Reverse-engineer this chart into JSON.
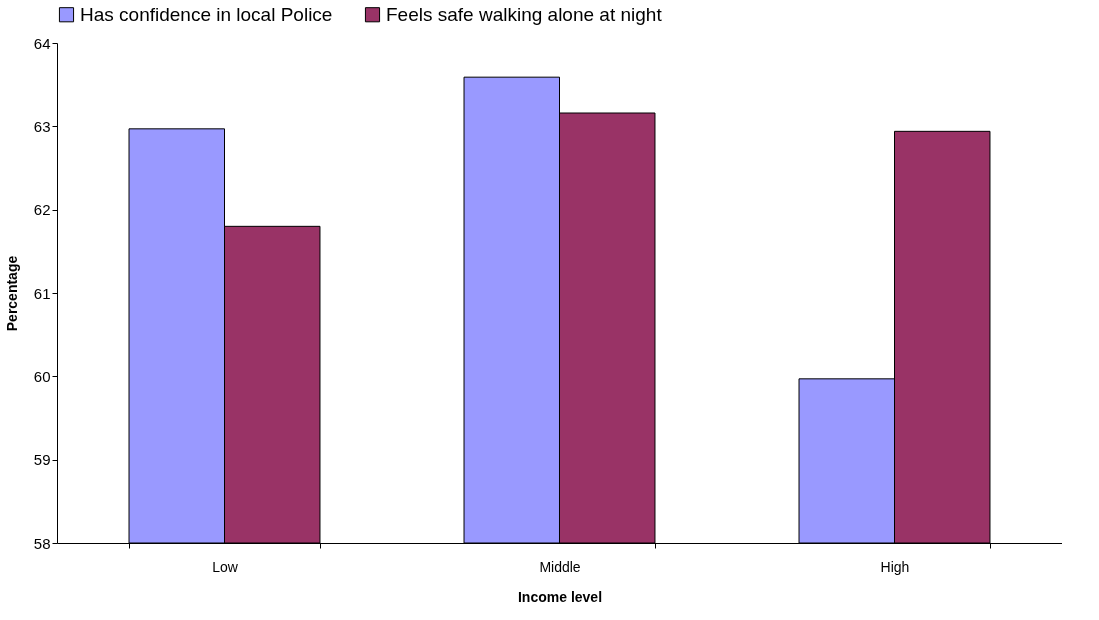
{
  "chart_data": {
    "type": "bar",
    "xlabel": "Income level",
    "ylabel": "Percentage",
    "categories": [
      "Low",
      "Middle",
      "High"
    ],
    "series": [
      {
        "name": "Has confidence in local Police",
        "color": "#9999ff",
        "values": [
          62.97,
          63.59,
          59.97
        ]
      },
      {
        "name": "Feels safe walking alone at night",
        "color": "#993366",
        "values": [
          61.8,
          63.16,
          62.94
        ]
      }
    ],
    "ylim": [
      58,
      64
    ],
    "yticks": [
      58,
      59,
      60,
      61,
      62,
      63,
      64
    ],
    "grid": false,
    "legend": "top"
  }
}
